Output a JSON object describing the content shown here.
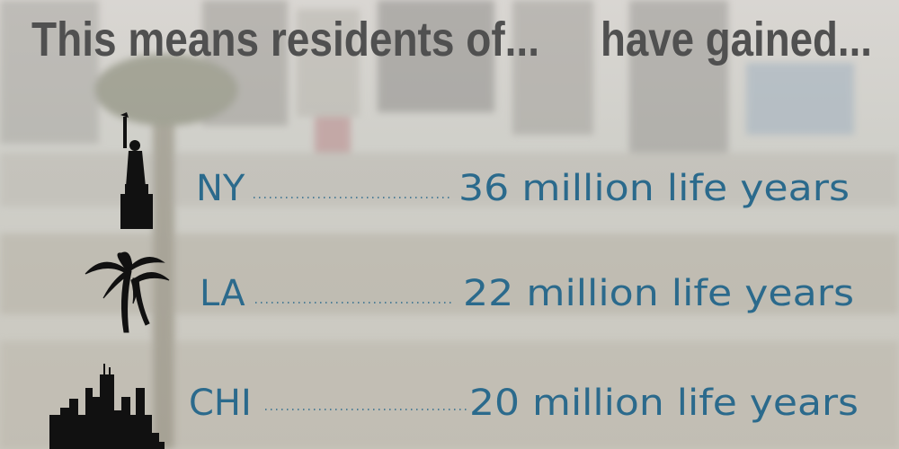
{
  "header": {
    "left": "This means residents of...",
    "right": "have gained..."
  },
  "rows": [
    {
      "city": "NY",
      "gain": "36 million life years"
    },
    {
      "city": "LA",
      "gain": "22 million life years"
    },
    {
      "city": "CHI",
      "gain": "20 million life years"
    }
  ]
}
